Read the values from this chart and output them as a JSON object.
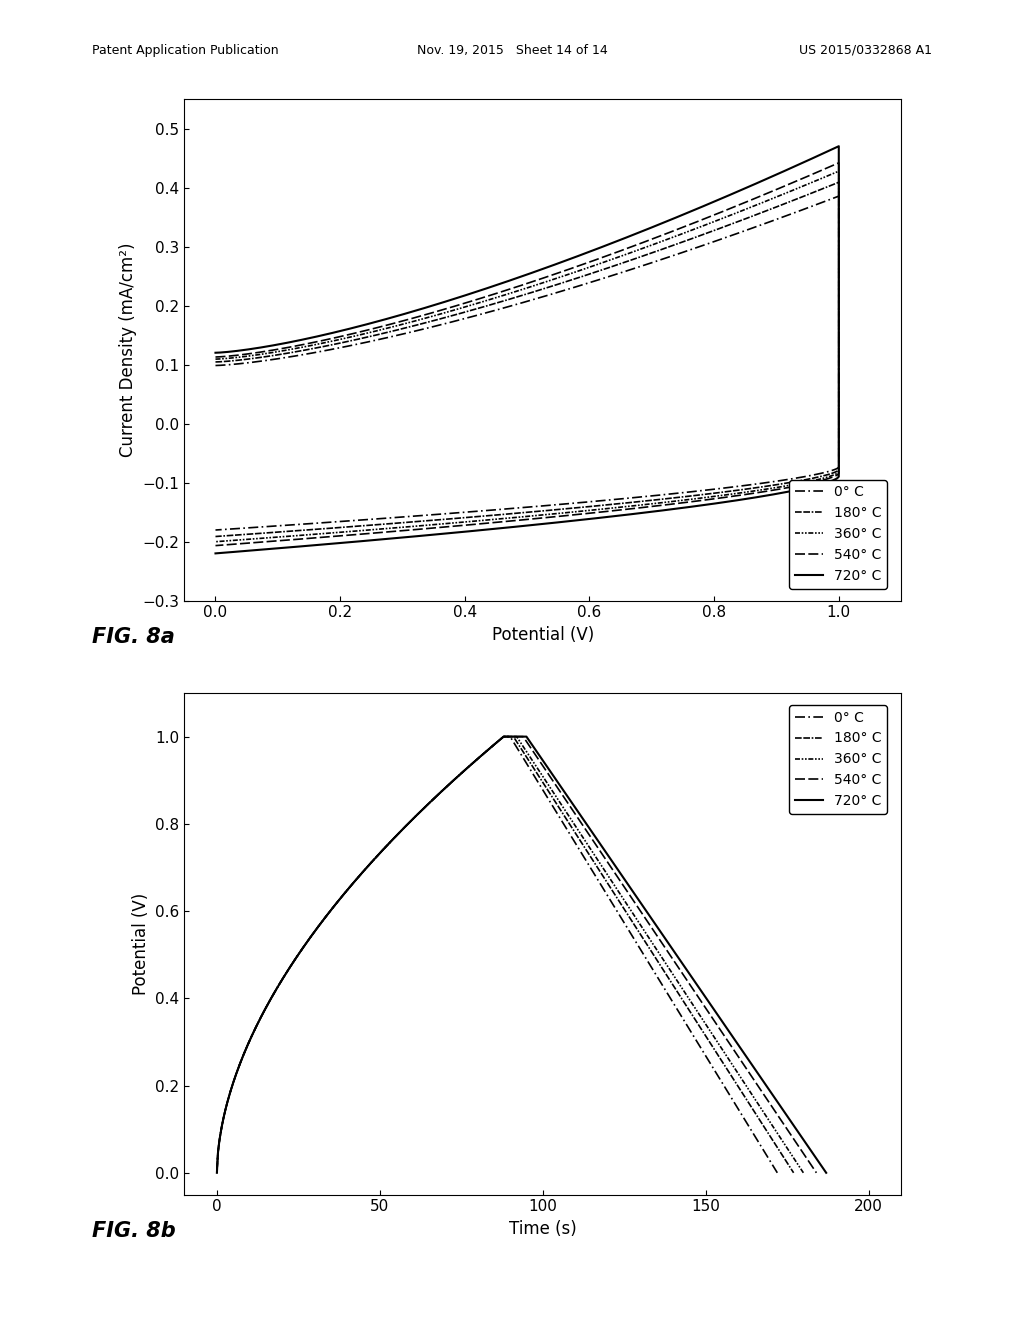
{
  "header_left": "Patent Application Publication",
  "header_mid": "Nov. 19, 2015   Sheet 14 of 14",
  "header_right": "US 2015/0332868 A1",
  "fig_a_label": "FIG. 8a",
  "fig_b_label": "FIG. 8b",
  "fig_a": {
    "xlabel": "Potential (V)",
    "ylabel": "Current Density (mA/cm²)",
    "xlim": [
      -0.05,
      1.1
    ],
    "ylim": [
      -0.3,
      0.55
    ],
    "xticks": [
      0.0,
      0.2,
      0.4,
      0.6,
      0.8,
      1.0
    ],
    "yticks": [
      -0.3,
      -0.2,
      -0.1,
      0.0,
      0.1,
      0.2,
      0.3,
      0.4,
      0.5
    ]
  },
  "fig_b": {
    "xlabel": "Time (s)",
    "ylabel": "Potential (V)",
    "xlim": [
      -10,
      210
    ],
    "ylim": [
      -0.05,
      1.1
    ],
    "xticks": [
      0,
      50,
      100,
      150,
      200
    ],
    "yticks": [
      0.0,
      0.2,
      0.4,
      0.6,
      0.8,
      1.0
    ]
  },
  "legend_labels": [
    "0° C",
    "180° C",
    "360° C",
    "540° C",
    "720° C"
  ],
  "legend_labels_b": [
    "0° C",
    "180° C",
    "360° C",
    "540° C",
    "720° C"
  ],
  "linestyle_dashes": [
    [
      6,
      2,
      1,
      2
    ],
    [
      4,
      1,
      4,
      1,
      1,
      1
    ],
    [
      3,
      1,
      1,
      1,
      1,
      1
    ],
    [
      6,
      2,
      6,
      2
    ],
    []
  ],
  "linewidths": [
    1.2,
    1.2,
    1.2,
    1.2,
    1.5
  ],
  "scales_cv": [
    0.82,
    0.87,
    0.91,
    0.94,
    1.0
  ],
  "charge_times": [
    88,
    88,
    88,
    88,
    88
  ],
  "discharge_starts": [
    90,
    91,
    92,
    94,
    95
  ],
  "discharge_times": [
    82,
    86,
    88,
    90,
    92
  ],
  "background_color": "#ffffff",
  "text_color": "#000000"
}
